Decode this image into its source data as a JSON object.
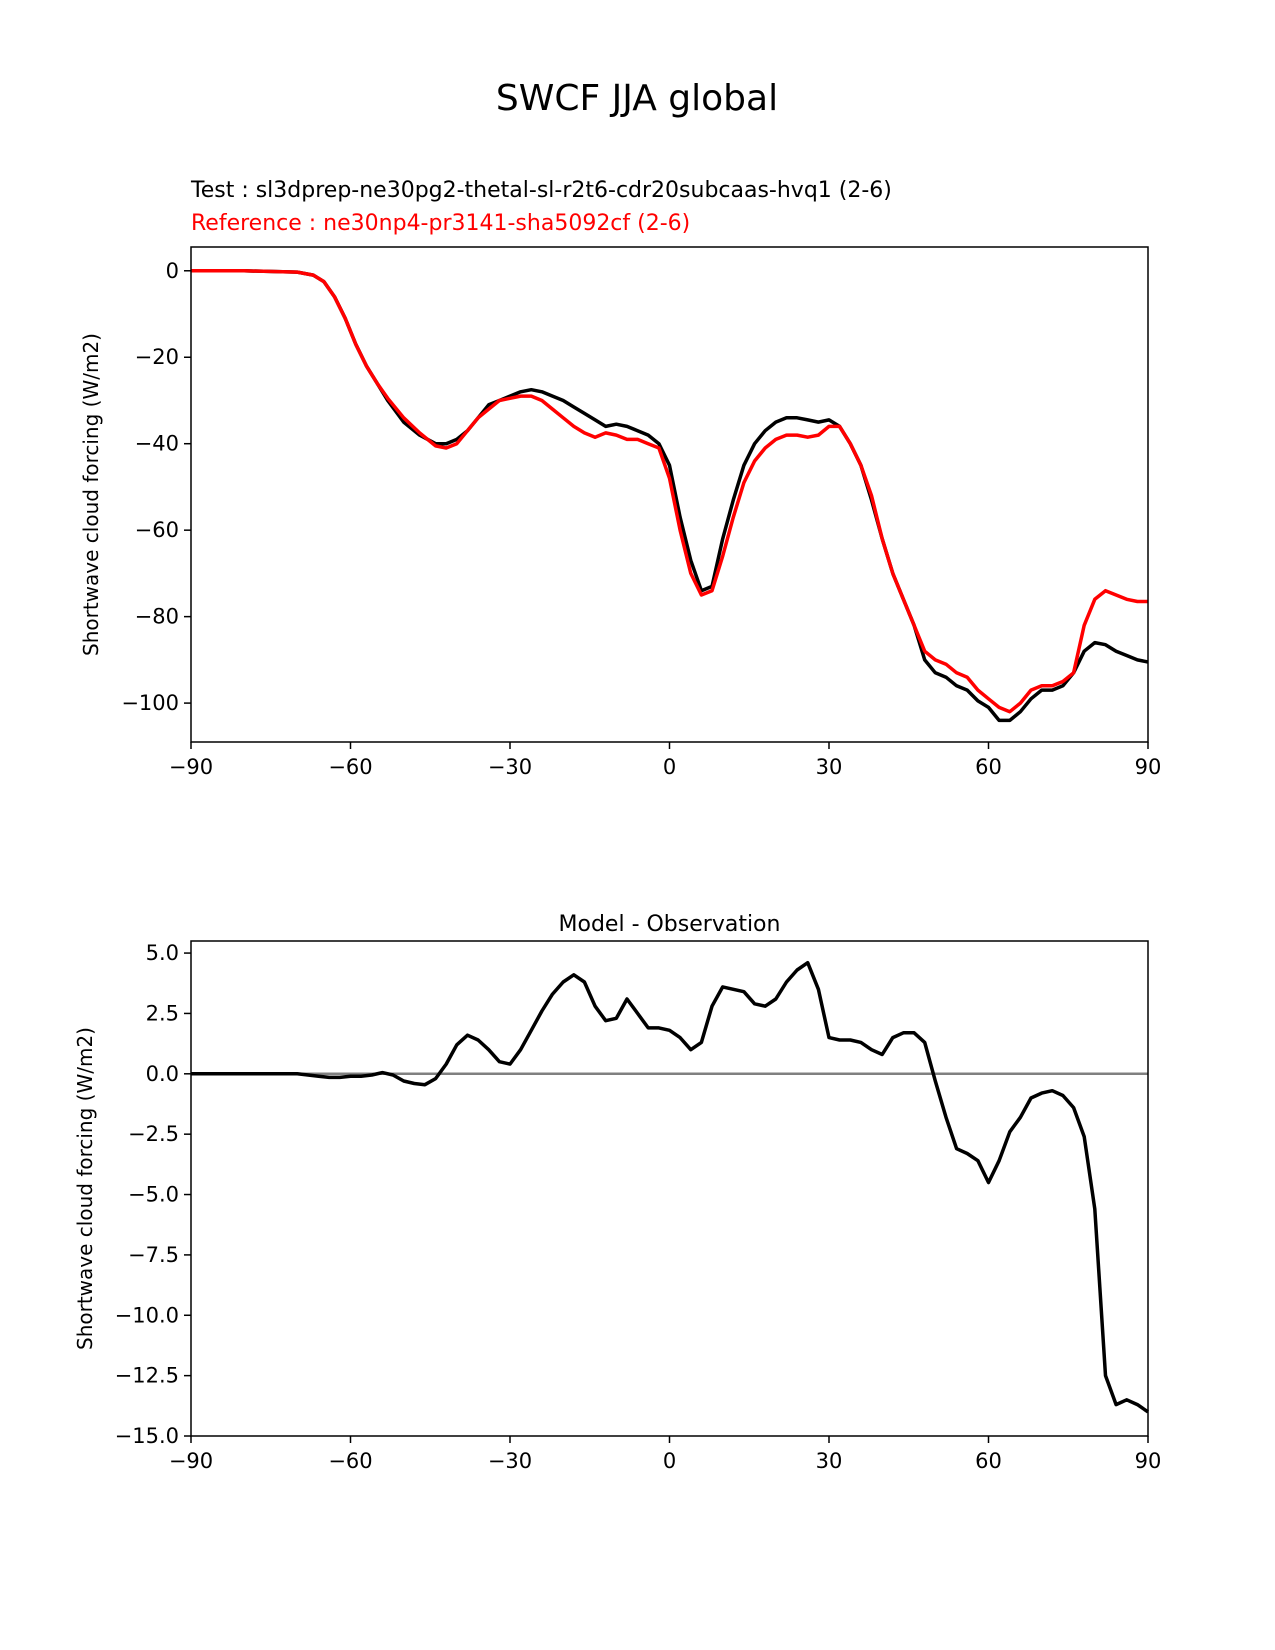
{
  "figure": {
    "title": "SWCF JJA global",
    "test_label": "Test : sl3dprep-ne30pg2-thetal-sl-r2t6-cdr20subcaas-hvq1 (2-6)",
    "reference_label": "Reference : ne30np4-pr3141-sha5092cf (2-6)"
  },
  "colors": {
    "test": "#000000",
    "reference": "#ff0000",
    "zero_line": "#808080"
  },
  "chart_data": [
    {
      "type": "line",
      "title": "",
      "xlabel": "",
      "ylabel": "Shortwave cloud forcing (W/m2)",
      "xlim": [
        -90,
        90
      ],
      "ylim": [
        -109,
        5.5
      ],
      "xticks": [
        -90,
        -60,
        -30,
        0,
        30,
        60,
        90
      ],
      "yticks": [
        0,
        -20,
        -40,
        -60,
        -80,
        -100
      ],
      "series": [
        {
          "key": "test",
          "x": [
            -90,
            -80,
            -70,
            -67,
            -65,
            -63,
            -61,
            -59,
            -57,
            -55,
            -53,
            -50,
            -47,
            -44,
            -42,
            -40,
            -38,
            -36,
            -34,
            -32,
            -30,
            -28,
            -26,
            -24,
            -22,
            -20,
            -18,
            -16,
            -14,
            -12,
            -10,
            -8,
            -6,
            -4,
            -2,
            0,
            2,
            4,
            6,
            8,
            10,
            12,
            14,
            16,
            18,
            20,
            22,
            24,
            26,
            28,
            30,
            32,
            34,
            36,
            38,
            40,
            42,
            44,
            46,
            48,
            50,
            52,
            54,
            56,
            58,
            60,
            62,
            64,
            66,
            68,
            70,
            72,
            74,
            76,
            78,
            80,
            82,
            84,
            86,
            88,
            90
          ],
          "y": [
            0,
            0,
            -0.3,
            -1,
            -2.5,
            -6,
            -11,
            -17,
            -22,
            -26,
            -30,
            -35,
            -38,
            -40,
            -40,
            -39,
            -37,
            -34,
            -31,
            -30,
            -29,
            -28,
            -27.5,
            -28,
            -29,
            -30,
            -31.5,
            -33,
            -34.5,
            -36,
            -35.5,
            -36,
            -37,
            -38,
            -40,
            -45,
            -57,
            -67,
            -74,
            -73,
            -62,
            -53,
            -45,
            -40,
            -37,
            -35,
            -34,
            -34,
            -34.5,
            -35,
            -34.5,
            -36,
            -40,
            -45,
            -53,
            -62,
            -70,
            -76,
            -82,
            -90,
            -93,
            -94,
            -96,
            -97,
            -99.5,
            -101,
            -104,
            -104,
            -102,
            -99,
            -97,
            -97,
            -96,
            -93,
            -88,
            -86,
            -86.5,
            -88,
            -89,
            -90,
            -90.5
          ]
        },
        {
          "key": "reference",
          "x": [
            -90,
            -80,
            -70,
            -67,
            -65,
            -63,
            -61,
            -59,
            -57,
            -55,
            -53,
            -50,
            -47,
            -44,
            -42,
            -40,
            -38,
            -36,
            -34,
            -32,
            -30,
            -28,
            -26,
            -24,
            -22,
            -20,
            -18,
            -16,
            -14,
            -12,
            -10,
            -8,
            -6,
            -4,
            -2,
            0,
            2,
            4,
            6,
            8,
            10,
            12,
            14,
            16,
            18,
            20,
            22,
            24,
            26,
            28,
            30,
            32,
            34,
            36,
            38,
            40,
            42,
            44,
            46,
            48,
            50,
            52,
            54,
            56,
            58,
            60,
            62,
            64,
            66,
            68,
            70,
            72,
            74,
            76,
            78,
            80,
            82,
            84,
            86,
            88,
            90
          ],
          "y": [
            0,
            0,
            -0.3,
            -1,
            -2.5,
            -6,
            -11,
            -17,
            -22,
            -26,
            -29.5,
            -34,
            -37.5,
            -40.5,
            -41,
            -40,
            -37,
            -34,
            -32,
            -30,
            -29.5,
            -29,
            -29,
            -30,
            -32,
            -34,
            -36,
            -37.5,
            -38.5,
            -37.5,
            -38,
            -39,
            -39,
            -40,
            -41,
            -48,
            -60,
            -70,
            -75,
            -74,
            -66,
            -57,
            -49,
            -44,
            -41,
            -39,
            -38,
            -38,
            -38.5,
            -38,
            -36,
            -36,
            -40,
            -45,
            -52,
            -62,
            -70,
            -76,
            -82,
            -88,
            -90,
            -91,
            -93,
            -94,
            -97,
            -99,
            -101,
            -102,
            -100,
            -97,
            -96,
            -96,
            -95,
            -93,
            -82,
            -76,
            -74,
            -75,
            -76,
            -76.5,
            -76.5
          ]
        }
      ]
    },
    {
      "type": "line",
      "title": "Model - Observation",
      "xlabel": "",
      "ylabel": "Shortwave cloud forcing (W/m2)",
      "xlim": [
        -90,
        90
      ],
      "ylim": [
        -15,
        5.5
      ],
      "xticks": [
        -90,
        -60,
        -30,
        0,
        30,
        60,
        90
      ],
      "yticks": [
        5.0,
        2.5,
        0.0,
        -2.5,
        -5.0,
        -7.5,
        -10.0,
        -12.5,
        -15.0
      ],
      "zero_line": 0,
      "series": [
        {
          "key": "test",
          "x": [
            -90,
            -80,
            -70,
            -66,
            -64,
            -62,
            -60,
            -58,
            -56,
            -54,
            -52,
            -50,
            -48,
            -46,
            -44,
            -42,
            -40,
            -38,
            -36,
            -34,
            -32,
            -30,
            -28,
            -26,
            -24,
            -22,
            -20,
            -18,
            -16,
            -14,
            -12,
            -10,
            -8,
            -6,
            -4,
            -2,
            0,
            2,
            4,
            6,
            8,
            10,
            12,
            14,
            16,
            18,
            20,
            22,
            24,
            26,
            28,
            30,
            32,
            34,
            36,
            38,
            40,
            42,
            44,
            46,
            48,
            50,
            52,
            54,
            56,
            58,
            60,
            62,
            64,
            66,
            68,
            70,
            72,
            74,
            76,
            78,
            80,
            82,
            84,
            86,
            88,
            90
          ],
          "y": [
            0,
            0,
            0,
            -0.1,
            -0.15,
            -0.15,
            -0.1,
            -0.1,
            -0.05,
            0.05,
            -0.05,
            -0.3,
            -0.4,
            -0.45,
            -0.2,
            0.4,
            1.2,
            1.6,
            1.4,
            1.0,
            0.5,
            0.4,
            1.0,
            1.8,
            2.6,
            3.3,
            3.8,
            4.1,
            3.8,
            2.8,
            2.2,
            2.3,
            3.1,
            2.5,
            1.9,
            1.9,
            1.8,
            1.5,
            1.0,
            1.3,
            2.8,
            3.6,
            3.5,
            3.4,
            2.9,
            2.8,
            3.1,
            3.8,
            4.3,
            4.6,
            3.5,
            1.5,
            1.4,
            1.4,
            1.3,
            1.0,
            0.8,
            1.5,
            1.7,
            1.7,
            1.3,
            -0.3,
            -1.8,
            -3.1,
            -3.3,
            -3.6,
            -4.5,
            -3.6,
            -2.4,
            -1.8,
            -1.0,
            -0.8,
            -0.7,
            -0.9,
            -1.4,
            -2.6,
            -5.6,
            -12.5,
            -13.7,
            -13.5,
            -13.7,
            -14.0
          ]
        }
      ]
    }
  ]
}
